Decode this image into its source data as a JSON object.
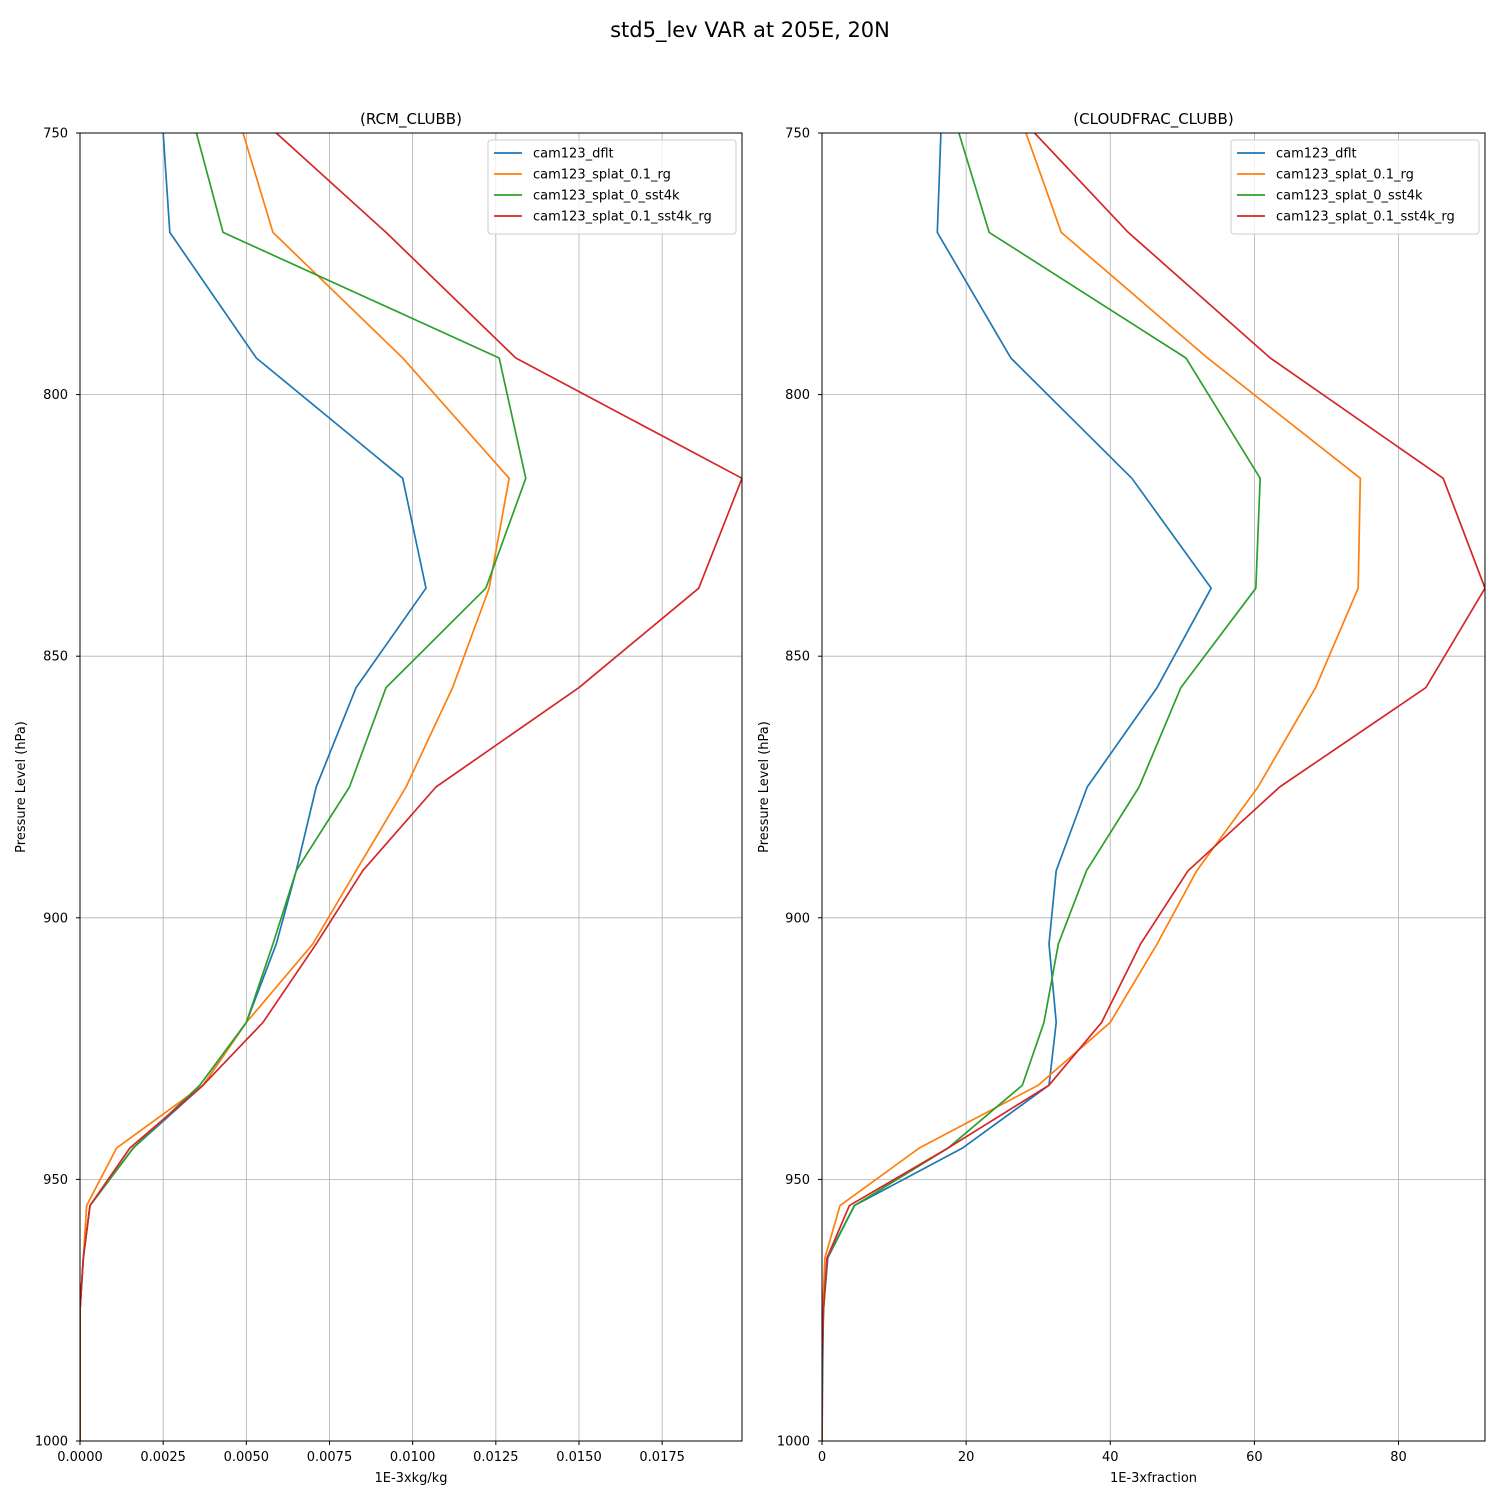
{
  "figure": {
    "suptitle": "std5_lev VAR at 205E, 20N"
  },
  "chart_data": [
    {
      "type": "line",
      "title": "(RCM_CLUBB)",
      "xlabel": "1E-3xkg/kg",
      "ylabel": "Pressure Level (hPa)",
      "xlim": [
        0,
        0.0199
      ],
      "ylim": [
        1000,
        750
      ],
      "y_inverted": true,
      "grid": true,
      "legend_position": "upper right",
      "x_ticks": [
        0,
        0.0025,
        0.005,
        0.0075,
        0.01,
        0.0125,
        0.015,
        0.0175
      ],
      "x_tick_labels": [
        "0.0000",
        "0.0025",
        "0.0050",
        "0.0075",
        "0.0100",
        "0.0125",
        "0.0150",
        "0.0175"
      ],
      "y_ticks": [
        750,
        800,
        850,
        900,
        950,
        1000
      ],
      "y_tick_labels": [
        "750",
        "800",
        "850",
        "900",
        "950",
        "1000"
      ],
      "series": [
        {
          "name": "cam123_dflt",
          "color": "#1f77b4",
          "points": [
            [
              0.0025,
              750
            ],
            [
              0.0027,
              769
            ],
            [
              0.0053,
              793
            ],
            [
              0.0097,
              816
            ],
            [
              0.0104,
              837
            ],
            [
              0.0083,
              856
            ],
            [
              0.0071,
              875
            ],
            [
              0.0065,
              891
            ],
            [
              0.0059,
              905
            ],
            [
              0.005,
              920
            ],
            [
              0.0037,
              932
            ],
            [
              0.0016,
              944
            ],
            [
              0.0003,
              955
            ],
            [
              0.0001,
              965
            ],
            [
              0.0,
              975
            ],
            [
              0.0,
              985
            ],
            [
              0.0,
              1000
            ]
          ]
        },
        {
          "name": "cam123_splat_0.1_rg",
          "color": "#ff7f0e",
          "points": [
            [
              0.0049,
              750
            ],
            [
              0.0058,
              769
            ],
            [
              0.0097,
              793
            ],
            [
              0.0129,
              816
            ],
            [
              0.0123,
              837
            ],
            [
              0.0112,
              856
            ],
            [
              0.0098,
              875
            ],
            [
              0.0083,
              891
            ],
            [
              0.007,
              905
            ],
            [
              0.005,
              920
            ],
            [
              0.0037,
              932
            ],
            [
              0.0011,
              944
            ],
            [
              0.0002,
              955
            ],
            [
              0.0001,
              965
            ],
            [
              0.0,
              975
            ],
            [
              0.0,
              985
            ],
            [
              0.0,
              1000
            ]
          ]
        },
        {
          "name": "cam123_splat_0_sst4k",
          "color": "#2ca02c",
          "points": [
            [
              0.0035,
              750
            ],
            [
              0.0043,
              769
            ],
            [
              0.0126,
              793
            ],
            [
              0.0134,
              816
            ],
            [
              0.0122,
              837
            ],
            [
              0.0092,
              856
            ],
            [
              0.0081,
              875
            ],
            [
              0.0065,
              891
            ],
            [
              0.0058,
              905
            ],
            [
              0.005,
              920
            ],
            [
              0.0036,
              932
            ],
            [
              0.0016,
              944
            ],
            [
              0.0003,
              955
            ],
            [
              0.0001,
              965
            ],
            [
              0.0,
              975
            ],
            [
              0.0,
              985
            ],
            [
              0.0,
              1000
            ]
          ]
        },
        {
          "name": "cam123_splat_0.1_sst4k_rg",
          "color": "#d62728",
          "points": [
            [
              0.0059,
              750
            ],
            [
              0.0092,
              769
            ],
            [
              0.0131,
              793
            ],
            [
              0.0199,
              816
            ],
            [
              0.0186,
              837
            ],
            [
              0.015,
              856
            ],
            [
              0.0107,
              875
            ],
            [
              0.0085,
              891
            ],
            [
              0.0071,
              905
            ],
            [
              0.0055,
              920
            ],
            [
              0.0037,
              932
            ],
            [
              0.0015,
              944
            ],
            [
              0.0003,
              955
            ],
            [
              0.0001,
              965
            ],
            [
              0.0,
              975
            ],
            [
              0.0,
              985
            ],
            [
              0.0,
              1000
            ]
          ]
        }
      ]
    },
    {
      "type": "line",
      "title": "(CLOUDFRAC_CLUBB)",
      "xlabel": "1E-3xfraction",
      "ylabel": "Pressure Level (hPa)",
      "xlim": [
        0,
        92
      ],
      "ylim": [
        1000,
        750
      ],
      "y_inverted": true,
      "grid": true,
      "legend_position": "upper right",
      "x_ticks": [
        0,
        20,
        40,
        60,
        80
      ],
      "x_tick_labels": [
        "0",
        "20",
        "40",
        "60",
        "80"
      ],
      "y_ticks": [
        750,
        800,
        850,
        900,
        950,
        1000
      ],
      "y_tick_labels": [
        "750",
        "800",
        "850",
        "900",
        "950",
        "1000"
      ],
      "series": [
        {
          "name": "cam123_dflt",
          "color": "#1f77b4",
          "points": [
            [
              16.5,
              750
            ],
            [
              16,
              769
            ],
            [
              26.2,
              793
            ],
            [
              43,
              816
            ],
            [
              54,
              837
            ],
            [
              46.5,
              856
            ],
            [
              36.8,
              875
            ],
            [
              32.5,
              891
            ],
            [
              31.5,
              905
            ],
            [
              32.5,
              920
            ],
            [
              31.5,
              932
            ],
            [
              19.5,
              944
            ],
            [
              4.5,
              955
            ],
            [
              0.8,
              965
            ],
            [
              0.2,
              975
            ],
            [
              0.1,
              985
            ],
            [
              0.0,
              1000
            ]
          ]
        },
        {
          "name": "cam123_splat_0.1_rg",
          "color": "#ff7f0e",
          "points": [
            [
              28.3,
              750
            ],
            [
              33.2,
              769
            ],
            [
              53.5,
              793
            ],
            [
              74.7,
              816
            ],
            [
              74.4,
              837
            ],
            [
              68.5,
              856
            ],
            [
              60.5,
              875
            ],
            [
              52,
              891
            ],
            [
              46.5,
              905
            ],
            [
              40,
              920
            ],
            [
              30,
              932
            ],
            [
              13.5,
              944
            ],
            [
              2.5,
              955
            ],
            [
              0.4,
              965
            ],
            [
              0.1,
              975
            ],
            [
              0.0,
              985
            ],
            [
              0.0,
              1000
            ]
          ]
        },
        {
          "name": "cam123_splat_0_sst4k",
          "color": "#2ca02c",
          "points": [
            [
              19,
              750
            ],
            [
              23.2,
              769
            ],
            [
              50.5,
              793
            ],
            [
              60.8,
              816
            ],
            [
              60.2,
              837
            ],
            [
              49.8,
              856
            ],
            [
              44,
              875
            ],
            [
              36.7,
              891
            ],
            [
              32.8,
              905
            ],
            [
              30.8,
              920
            ],
            [
              27.8,
              932
            ],
            [
              17.5,
              944
            ],
            [
              4.5,
              955
            ],
            [
              0.7,
              965
            ],
            [
              0.2,
              975
            ],
            [
              0.0,
              985
            ],
            [
              0.0,
              1000
            ]
          ]
        },
        {
          "name": "cam123_splat_0.1_sst4k_rg",
          "color": "#d62728",
          "points": [
            [
              29.5,
              750
            ],
            [
              42.5,
              769
            ],
            [
              62.2,
              793
            ],
            [
              86.2,
              816
            ],
            [
              92,
              837
            ],
            [
              83.8,
              856
            ],
            [
              63.5,
              875
            ],
            [
              50.8,
              891
            ],
            [
              44.2,
              905
            ],
            [
              38.8,
              920
            ],
            [
              31.5,
              932
            ],
            [
              17.5,
              944
            ],
            [
              3.8,
              955
            ],
            [
              0.7,
              965
            ],
            [
              0.2,
              975
            ],
            [
              0.0,
              985
            ],
            [
              0.0,
              1000
            ]
          ]
        }
      ]
    }
  ]
}
